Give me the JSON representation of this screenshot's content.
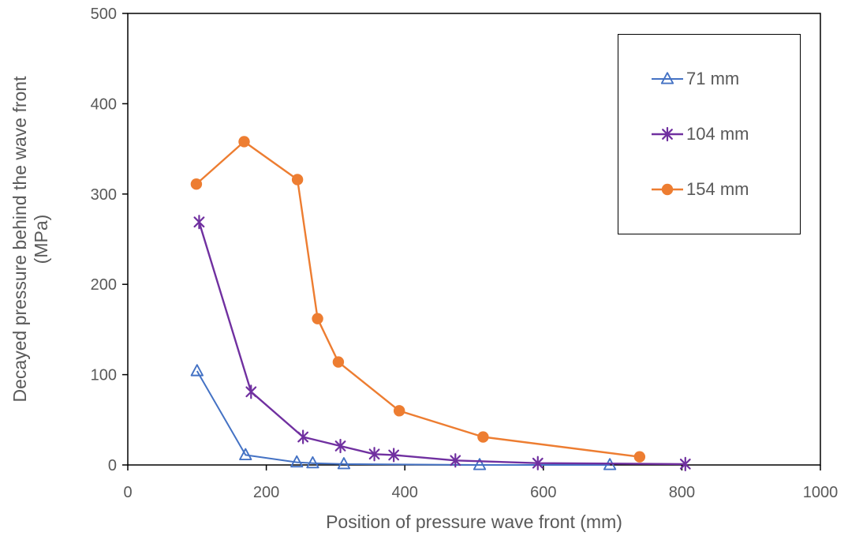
{
  "chart_data": {
    "type": "line",
    "title": "",
    "xlabel": "Position of pressure wave front (mm)",
    "ylabel": "Decayed pressure behind the wave front (MPa)",
    "ylabel_lines": [
      "Decayed pressure behind the wave front",
      "(MPa)"
    ],
    "xlim": [
      0,
      1000
    ],
    "ylim": [
      0,
      500
    ],
    "x_ticks": [
      "0",
      "200",
      "400",
      "600",
      "800",
      "1000"
    ],
    "y_ticks": [
      "0",
      "100",
      "200",
      "300",
      "400",
      "500"
    ],
    "grid": false,
    "legend_position": "inside-top-right",
    "series": [
      {
        "name": "71 mm",
        "color": "#4472C4",
        "marker": "triangle-open",
        "line_width": 2,
        "points": [
          [
            100,
            104
          ],
          [
            170,
            11
          ],
          [
            244,
            3
          ],
          [
            267,
            2
          ],
          [
            312,
            1
          ],
          [
            508,
            0
          ],
          [
            696,
            0
          ]
        ]
      },
      {
        "name": "104 mm",
        "color": "#7030A0",
        "marker": "asterisk",
        "line_width": 2.4,
        "points": [
          [
            103,
            269
          ],
          [
            178,
            81
          ],
          [
            253,
            31
          ],
          [
            307,
            21
          ],
          [
            356,
            12
          ],
          [
            384,
            11
          ],
          [
            473,
            5
          ],
          [
            592,
            2
          ],
          [
            805,
            1
          ]
        ]
      },
      {
        "name": "154 mm",
        "color": "#ED7D31",
        "marker": "circle-filled",
        "line_width": 2.4,
        "points": [
          [
            99,
            311
          ],
          [
            168,
            358
          ],
          [
            245,
            316
          ],
          [
            274,
            162
          ],
          [
            304,
            114
          ],
          [
            392,
            60
          ],
          [
            513,
            31
          ],
          [
            739,
            9
          ]
        ]
      }
    ]
  },
  "colors": {
    "axis_line": "#000000",
    "axis_text": "#595959",
    "background": "#FFFFFF",
    "legend_border": "#000000"
  }
}
